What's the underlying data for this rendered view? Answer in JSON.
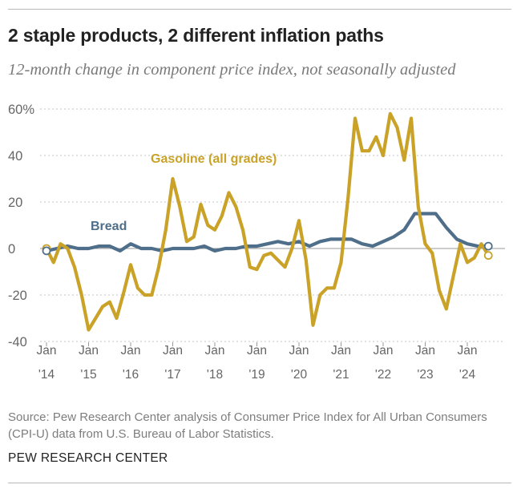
{
  "title": "2 staple products, 2 different inflation paths",
  "subtitle": "12-month change in component price index, not seasonally adjusted",
  "source": "Source: Pew Research Center analysis of Consumer Price Index for All Urban Consumers (CPI-U) data from U.S. Bureau of Labor Statistics.",
  "organization": "PEW RESEARCH CENTER",
  "chart_data": {
    "type": "line",
    "title": "2 staple products, 2 different inflation paths",
    "subtitle": "12-month change in component price index, not seasonally adjusted",
    "xlabel": "",
    "ylabel": "",
    "ylim": [
      -40,
      60
    ],
    "xlim": [
      "2014-01",
      "2024-07"
    ],
    "grid": true,
    "y_ticks": [
      60,
      40,
      20,
      0,
      -20,
      -40
    ],
    "y_tick_labels": [
      "60%",
      "40",
      "20",
      "0",
      "-20",
      "-40"
    ],
    "x_ticks": [
      "2014-01",
      "2015-01",
      "2016-01",
      "2017-01",
      "2018-01",
      "2019-01",
      "2020-01",
      "2021-01",
      "2022-01",
      "2023-01",
      "2024-01"
    ],
    "x_tick_labels": [
      [
        "Jan",
        "'14"
      ],
      [
        "Jan",
        "'15"
      ],
      [
        "Jan",
        "'16"
      ],
      [
        "Jan",
        "'17"
      ],
      [
        "Jan",
        "'18"
      ],
      [
        "Jan",
        "'19"
      ],
      [
        "Jan",
        "'20"
      ],
      [
        "Jan",
        "'21"
      ],
      [
        "Jan",
        "'22"
      ],
      [
        "Jan",
        "'23"
      ],
      [
        "Jan",
        "'24"
      ]
    ],
    "series": [
      {
        "name": "Gasoline (all grades)",
        "color": "#C9A227",
        "x": [
          "2014-01",
          "2014-03",
          "2014-05",
          "2014-07",
          "2014-09",
          "2014-11",
          "2015-01",
          "2015-03",
          "2015-05",
          "2015-07",
          "2015-09",
          "2015-11",
          "2016-01",
          "2016-03",
          "2016-05",
          "2016-07",
          "2016-09",
          "2016-11",
          "2017-01",
          "2017-03",
          "2017-05",
          "2017-07",
          "2017-09",
          "2017-11",
          "2018-01",
          "2018-03",
          "2018-05",
          "2018-07",
          "2018-09",
          "2018-11",
          "2019-01",
          "2019-03",
          "2019-05",
          "2019-07",
          "2019-09",
          "2019-11",
          "2020-01",
          "2020-03",
          "2020-05",
          "2020-07",
          "2020-09",
          "2020-11",
          "2021-01",
          "2021-03",
          "2021-05",
          "2021-07",
          "2021-09",
          "2021-11",
          "2022-01",
          "2022-03",
          "2022-05",
          "2022-07",
          "2022-09",
          "2022-11",
          "2023-01",
          "2023-03",
          "2023-05",
          "2023-07",
          "2023-09",
          "2023-11",
          "2024-01",
          "2024-03",
          "2024-05",
          "2024-07"
        ],
        "values": [
          0,
          -6,
          2,
          0,
          -8,
          -20,
          -35,
          -30,
          -25,
          -23,
          -30,
          -19,
          -7,
          -17,
          -20,
          -20,
          -8,
          8,
          30,
          18,
          3,
          5,
          19,
          10,
          8,
          14,
          24,
          18,
          8,
          -8,
          -9,
          -3,
          -2,
          -5,
          -8,
          0,
          12,
          -5,
          -33,
          -20,
          -17,
          -17,
          -6,
          22,
          56,
          42,
          42,
          48,
          40,
          58,
          52,
          38,
          56,
          18,
          2,
          -2,
          -18,
          -26,
          -12,
          2,
          -6,
          -4,
          2,
          -3
        ]
      },
      {
        "name": "Bread",
        "color": "#4E6E8A",
        "x": [
          "2014-01",
          "2014-04",
          "2014-07",
          "2014-10",
          "2015-01",
          "2015-04",
          "2015-07",
          "2015-10",
          "2016-01",
          "2016-04",
          "2016-07",
          "2016-10",
          "2017-01",
          "2017-04",
          "2017-07",
          "2017-10",
          "2018-01",
          "2018-04",
          "2018-07",
          "2018-10",
          "2019-01",
          "2019-04",
          "2019-07",
          "2019-10",
          "2020-01",
          "2020-04",
          "2020-07",
          "2020-10",
          "2021-01",
          "2021-04",
          "2021-07",
          "2021-10",
          "2022-01",
          "2022-04",
          "2022-07",
          "2022-10",
          "2023-01",
          "2023-04",
          "2023-07",
          "2023-10",
          "2024-01",
          "2024-04",
          "2024-07"
        ],
        "values": [
          -1,
          0,
          1,
          0,
          0,
          1,
          1,
          -1,
          2,
          0,
          0,
          -1,
          0,
          0,
          0,
          1,
          -1,
          0,
          0,
          1,
          1,
          2,
          3,
          2,
          3,
          1,
          3,
          4,
          4,
          4,
          2,
          1,
          3,
          5,
          8,
          15,
          15,
          15,
          9,
          4,
          2,
          1,
          1
        ]
      }
    ],
    "annotations": [
      "Gasoline (all grades)",
      "Bread"
    ]
  }
}
